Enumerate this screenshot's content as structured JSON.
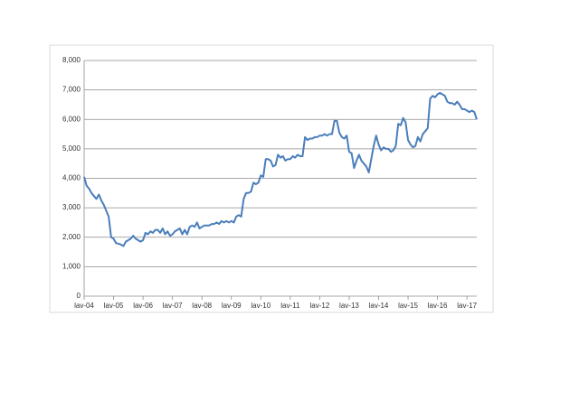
{
  "chart_data": {
    "type": "line",
    "categories": [
      "lav-04",
      null,
      null,
      null,
      null,
      null,
      null,
      null,
      null,
      null,
      null,
      null,
      "lav-05",
      null,
      null,
      null,
      null,
      null,
      null,
      null,
      null,
      null,
      null,
      null,
      "lav-06",
      null,
      null,
      null,
      null,
      null,
      null,
      null,
      null,
      null,
      null,
      null,
      "lav-07",
      null,
      null,
      null,
      null,
      null,
      null,
      null,
      null,
      null,
      null,
      null,
      "lav-08",
      null,
      null,
      null,
      null,
      null,
      null,
      null,
      null,
      null,
      null,
      null,
      "lav-09",
      null,
      null,
      null,
      null,
      null,
      null,
      null,
      null,
      null,
      null,
      null,
      "lav-10",
      null,
      null,
      null,
      null,
      null,
      null,
      null,
      null,
      null,
      null,
      null,
      "lav-11",
      null,
      null,
      null,
      null,
      null,
      null,
      null,
      null,
      null,
      null,
      null,
      "lav-12",
      null,
      null,
      null,
      null,
      null,
      null,
      null,
      null,
      null,
      null,
      null,
      "lav-13",
      null,
      null,
      null,
      null,
      null,
      null,
      null,
      null,
      null,
      null,
      null,
      "lav-14",
      null,
      null,
      null,
      null,
      null,
      null,
      null,
      null,
      null,
      null,
      null,
      "lav-15",
      null,
      null,
      null,
      null,
      null,
      null,
      null,
      null,
      null,
      null,
      null,
      "lav-16",
      null,
      null,
      null,
      null,
      null,
      null,
      null,
      null,
      null,
      null,
      null,
      "lav-17",
      null,
      null,
      null,
      null
    ],
    "series": [
      {
        "color": "#4a7ebb",
        "values": [
          4050,
          3750,
          3650,
          3500,
          3400,
          3300,
          3450,
          3250,
          3100,
          2900,
          2700,
          2000,
          1950,
          1800,
          1780,
          1750,
          1700,
          1850,
          1900,
          1950,
          2050,
          1950,
          1900,
          1850,
          1900,
          2150,
          2100,
          2200,
          2150,
          2250,
          2250,
          2150,
          2300,
          2100,
          2200,
          2050,
          2100,
          2200,
          2250,
          2300,
          2100,
          2250,
          2100,
          2350,
          2400,
          2350,
          2500,
          2300,
          2350,
          2400,
          2400,
          2400,
          2450,
          2450,
          2500,
          2450,
          2550,
          2500,
          2550,
          2500,
          2550,
          2500,
          2700,
          2750,
          2700,
          3300,
          3500,
          3500,
          3550,
          3850,
          3800,
          3850,
          4100,
          4050,
          4650,
          4650,
          4600,
          4400,
          4450,
          4800,
          4700,
          4750,
          4600,
          4650,
          4650,
          4750,
          4700,
          4800,
          4750,
          4750,
          5400,
          5300,
          5350,
          5350,
          5400,
          5400,
          5450,
          5450,
          5500,
          5450,
          5500,
          5500,
          5950,
          5950,
          5550,
          5400,
          5350,
          5450,
          4900,
          4850,
          4350,
          4600,
          4800,
          4600,
          4500,
          4400,
          4200,
          4650,
          5100,
          5450,
          5150,
          4950,
          5050,
          5000,
          5000,
          4900,
          4950,
          5100,
          5850,
          5800,
          6050,
          5900,
          5300,
          5150,
          5050,
          5100,
          5400,
          5250,
          5500,
          5600,
          5700,
          6700,
          6800,
          6750,
          6850,
          6900,
          6850,
          6800,
          6600,
          6550,
          6550,
          6500,
          6600,
          6500,
          6350,
          6350,
          6300,
          6250,
          6300,
          6250,
          6000
        ]
      }
    ],
    "ylim": [
      0,
      8000
    ],
    "yticks": [
      0,
      {
        "value": 1000,
        "label": "1,000"
      },
      {
        "value": 2000,
        "label": "2,000"
      },
      {
        "value": 3000,
        "label": "3,000"
      },
      {
        "value": 4000,
        "label": "4,000"
      },
      {
        "value": 5000,
        "label": "5,000"
      },
      {
        "value": 6000,
        "label": "6,000"
      },
      {
        "value": 7000,
        "label": "7,000"
      },
      {
        "value": 8000,
        "label": "8,000"
      }
    ],
    "grid": true
  }
}
